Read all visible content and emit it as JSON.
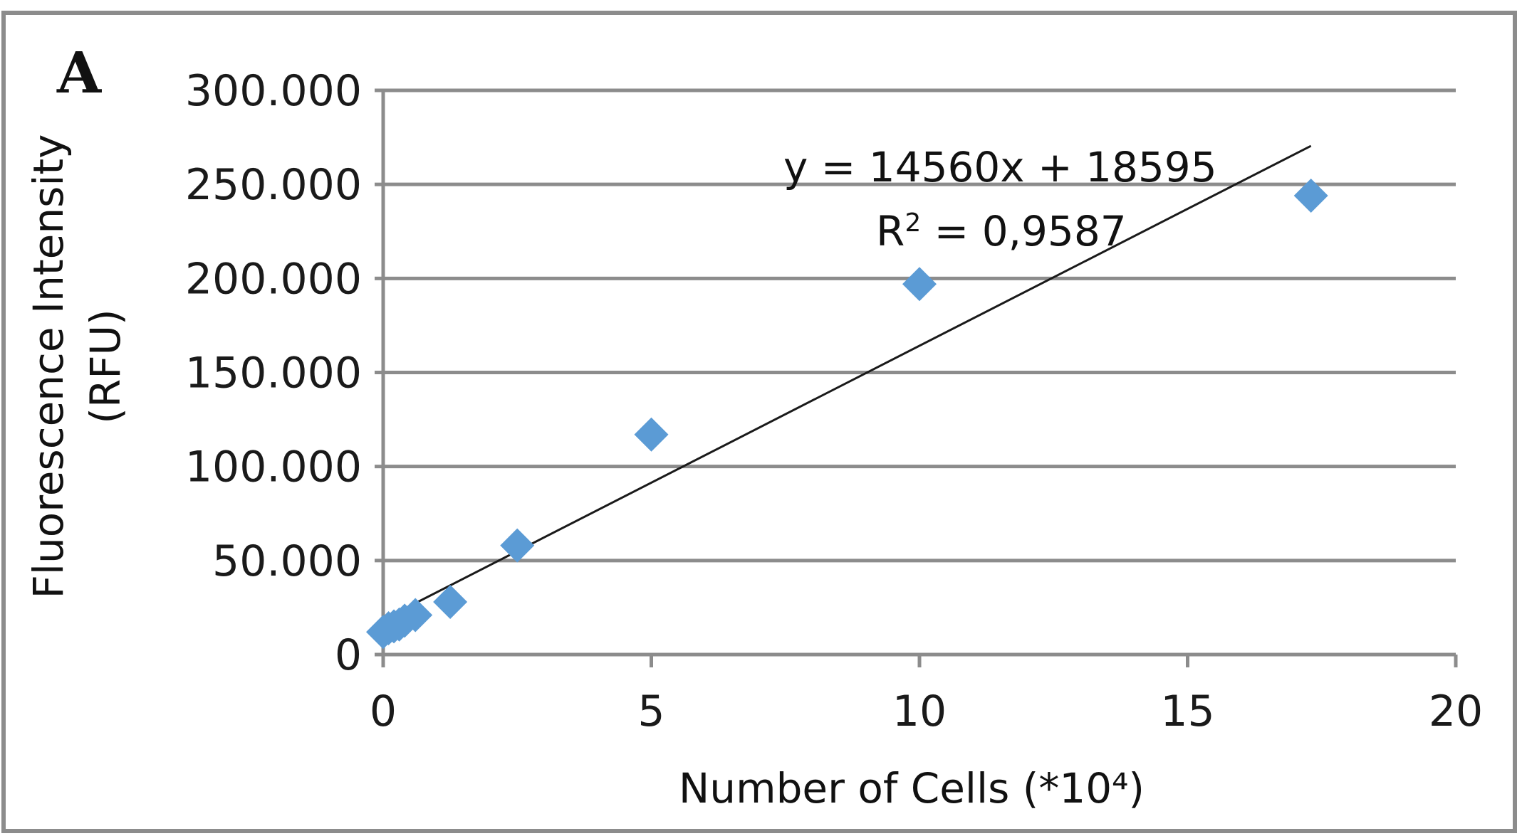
{
  "chart_data": {
    "type": "scatter",
    "panel_label": "A",
    "xlabel": "Number of Cells (*10⁴)",
    "ylabel_lines": [
      "Fluorescence Intensity",
      "(RFU)"
    ],
    "xlim": [
      0,
      20
    ],
    "ylim": [
      0,
      300000
    ],
    "x_ticks": [
      0,
      5,
      10,
      15,
      20
    ],
    "x_tick_labels": [
      "0",
      "5",
      "10",
      "15",
      "20"
    ],
    "y_ticks": [
      0,
      50000,
      100000,
      150000,
      200000,
      250000,
      300000
    ],
    "y_tick_labels": [
      "0",
      "50.000",
      "100.000",
      "150.000",
      "200.000",
      "250.000",
      "300.000"
    ],
    "grid": "horizontal",
    "series": [
      {
        "color": "#5b9bd5",
        "marker": "diamond",
        "x": [
          0.0,
          0.1,
          0.2,
          0.3,
          0.4,
          0.6,
          1.25,
          2.5,
          5.0,
          10.0,
          17.3
        ],
        "y": [
          12000,
          14000,
          15000,
          16000,
          18000,
          21000,
          28000,
          58000,
          117000,
          197000,
          244000
        ]
      }
    ],
    "trendline": {
      "type": "linear",
      "slope": 14560,
      "intercept": 18595,
      "x_range": [
        0.1,
        17.3
      ],
      "color": "#1a1a1a",
      "equation_text": "y = 14560x + 18595",
      "r2_prefix": "R",
      "r2_sup": "2",
      "r2_suffix": " = 0,9587"
    }
  },
  "colors": {
    "frame": "#8c8c8c",
    "grid": "#8c8c8c",
    "axis": "#8c8c8c",
    "marker": "#5b9bd5",
    "text": "#1a1a1a"
  }
}
